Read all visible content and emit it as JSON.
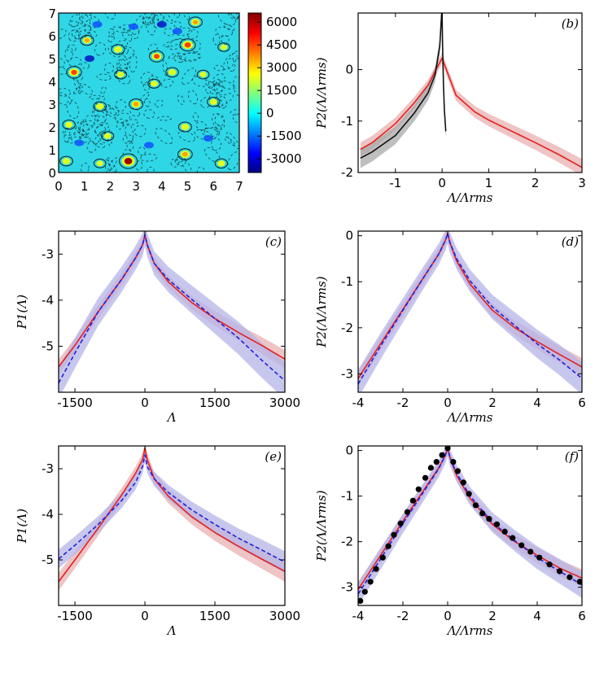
{
  "colorbar": {
    "ticks": [
      "6000",
      "4500",
      "3000",
      "1500",
      "0",
      "-1500",
      "-3000"
    ],
    "tick_values": [
      6000,
      4500,
      3000,
      1500,
      0,
      -1500,
      -3000
    ],
    "range": [
      -3900,
      6600
    ],
    "colors": [
      "#00007f",
      "#0000ff",
      "#00ffff",
      "#ffff00",
      "#ff7f00",
      "#ff0000",
      "#7f0000"
    ]
  },
  "chart_data": [
    {
      "id": "a",
      "type": "heatmap",
      "panel_label": "",
      "title": "",
      "xlabel": "",
      "ylabel": "",
      "xlim": [
        0,
        7
      ],
      "ylim": [
        0,
        7
      ],
      "x_ticks": [
        "0",
        "1",
        "2",
        "3",
        "4",
        "5",
        "6",
        "7"
      ],
      "y_ticks": [
        "0",
        "1",
        "2",
        "3",
        "4",
        "5",
        "6",
        "7"
      ],
      "background_color": "#2fd6e6",
      "hot_spots": [
        {
          "x": 0.6,
          "y": 4.4,
          "v": 3800
        },
        {
          "x": 1.1,
          "y": 5.8,
          "v": 2600
        },
        {
          "x": 2.3,
          "y": 5.4,
          "v": 2400
        },
        {
          "x": 3.8,
          "y": 5.1,
          "v": 3500
        },
        {
          "x": 4.4,
          "y": 4.4,
          "v": 2200
        },
        {
          "x": 5.0,
          "y": 5.6,
          "v": 4200
        },
        {
          "x": 5.3,
          "y": 6.6,
          "v": 2800
        },
        {
          "x": 3.0,
          "y": 3.0,
          "v": 3000
        },
        {
          "x": 1.6,
          "y": 2.9,
          "v": 2200
        },
        {
          "x": 6.0,
          "y": 3.1,
          "v": 2000
        },
        {
          "x": 4.9,
          "y": 2.0,
          "v": 2400
        },
        {
          "x": 2.7,
          "y": 0.5,
          "v": 6000
        },
        {
          "x": 0.3,
          "y": 0.5,
          "v": 2300
        },
        {
          "x": 4.9,
          "y": 0.8,
          "v": 3400
        },
        {
          "x": 6.3,
          "y": 0.4,
          "v": 2000
        },
        {
          "x": 1.9,
          "y": 1.6,
          "v": 1800
        },
        {
          "x": 3.7,
          "y": 3.9,
          "v": 1800
        },
        {
          "x": 0.4,
          "y": 2.1,
          "v": 2000
        },
        {
          "x": 2.4,
          "y": 4.3,
          "v": 1700
        },
        {
          "x": 5.6,
          "y": 4.3,
          "v": 1600
        },
        {
          "x": 6.4,
          "y": 5.5,
          "v": 1500
        },
        {
          "x": 1.6,
          "y": 0.4,
          "v": 1600
        }
      ],
      "cold_spots": [
        {
          "x": 1.2,
          "y": 5.0,
          "v": -3000
        },
        {
          "x": 2.9,
          "y": 6.4,
          "v": -2500
        },
        {
          "x": 4.0,
          "y": 6.5,
          "v": -2600
        },
        {
          "x": 1.5,
          "y": 6.5,
          "v": -2000
        },
        {
          "x": 3.5,
          "y": 1.2,
          "v": -1800
        },
        {
          "x": 5.8,
          "y": 1.5,
          "v": -1800
        },
        {
          "x": 0.8,
          "y": 1.3,
          "v": -2000
        },
        {
          "x": 4.6,
          "y": 6.2,
          "v": -2200
        }
      ]
    },
    {
      "id": "b",
      "type": "line",
      "panel_label": "(b)",
      "xlabel": "Λ/Λrms",
      "ylabel": "P2(Λ/Λrms)",
      "xlim": [
        -1.8,
        3.0
      ],
      "ylim": [
        -2.0,
        1.1
      ],
      "x_ticks": [
        -1,
        0,
        1,
        2,
        3
      ],
      "y_ticks": [
        0,
        -1,
        -2
      ],
      "series": [
        {
          "name": "red",
          "color": "#e52020",
          "band": 0.1,
          "band_color": "#e8b0b0",
          "x": [
            -1.75,
            -1.5,
            -1.0,
            -0.6,
            -0.3,
            -0.1,
            0.0,
            0.05,
            0.3,
            0.7,
            1.0,
            1.5,
            2.0,
            2.5,
            3.0
          ],
          "y": [
            -1.55,
            -1.42,
            -1.05,
            -0.65,
            -0.3,
            0.05,
            0.22,
            0.1,
            -0.5,
            -0.82,
            -0.98,
            -1.2,
            -1.42,
            -1.65,
            -1.9
          ]
        },
        {
          "name": "black",
          "color": "#111111",
          "band": 0.14,
          "band_color": "#a8a8a8",
          "x": [
            -1.75,
            -1.5,
            -1.0,
            -0.6,
            -0.3,
            -0.15,
            -0.05,
            -0.01,
            0.0,
            0.01,
            0.03,
            0.05,
            0.08
          ],
          "y": [
            -1.72,
            -1.6,
            -1.28,
            -0.85,
            -0.45,
            -0.1,
            0.45,
            1.08,
            1.1,
            0.5,
            -0.3,
            -0.8,
            -1.2
          ]
        }
      ]
    },
    {
      "id": "c",
      "type": "line",
      "panel_label": "(c)",
      "xlabel": "Λ",
      "ylabel": "P1(Λ)",
      "xlim": [
        -1850,
        3000
      ],
      "ylim": [
        -6.0,
        -2.5
      ],
      "x_ticks": [
        -1500,
        0,
        1500,
        3000
      ],
      "y_ticks": [
        -3,
        -4,
        -5
      ],
      "series": [
        {
          "name": "red",
          "color": "#e52020",
          "dash": false,
          "band": 0.12,
          "band_color": "#e8b0b0",
          "x": [
            -1850,
            -1500,
            -1000,
            -500,
            -200,
            -50,
            0,
            50,
            200,
            500,
            1000,
            1500,
            2000,
            2500,
            3000
          ],
          "y": [
            -5.45,
            -4.98,
            -4.25,
            -3.55,
            -3.08,
            -2.8,
            -2.58,
            -2.8,
            -3.2,
            -3.6,
            -4.05,
            -4.4,
            -4.7,
            -4.98,
            -5.28
          ]
        },
        {
          "name": "blue",
          "color": "#2020e0",
          "dash": true,
          "band": 0.25,
          "band_color": "#b4b4e8",
          "x": [
            -1850,
            -1500,
            -1000,
            -500,
            -200,
            -50,
            0,
            50,
            200,
            500,
            1000,
            1500,
            2000,
            2500,
            3000
          ],
          "y": [
            -5.8,
            -5.15,
            -4.25,
            -3.55,
            -3.08,
            -2.8,
            -2.58,
            -2.8,
            -3.2,
            -3.55,
            -3.98,
            -4.4,
            -4.82,
            -5.3,
            -5.75
          ]
        }
      ]
    },
    {
      "id": "d",
      "type": "line",
      "panel_label": "(d)",
      "xlabel": "Λ/Λrms",
      "ylabel": "P2(Λ/Λrms)",
      "xlim": [
        -4.0,
        6.0
      ],
      "ylim": [
        -3.4,
        0.1
      ],
      "x_ticks": [
        -4,
        -2,
        0,
        2,
        4,
        6
      ],
      "y_ticks": [
        0,
        -1,
        -2,
        -3
      ],
      "series": [
        {
          "name": "red",
          "color": "#e52020",
          "dash": false,
          "band": 0.12,
          "band_color": "#e8b0b0",
          "x": [
            -4,
            -3,
            -2,
            -1,
            -0.4,
            -0.1,
            0,
            0.1,
            0.4,
            1,
            2,
            3,
            4,
            5,
            6
          ],
          "y": [
            -3.1,
            -2.35,
            -1.6,
            -0.85,
            -0.4,
            -0.1,
            0.05,
            -0.15,
            -0.55,
            -1.05,
            -1.62,
            -2.0,
            -2.3,
            -2.58,
            -2.85
          ]
        },
        {
          "name": "blue",
          "color": "#2020e0",
          "dash": true,
          "band": 0.22,
          "band_color": "#b4b4e8",
          "x": [
            -4,
            -3,
            -2,
            -1,
            -0.4,
            -0.1,
            0,
            0.1,
            0.4,
            1,
            2,
            3,
            4,
            5,
            6
          ],
          "y": [
            -3.22,
            -2.4,
            -1.62,
            -0.85,
            -0.4,
            -0.1,
            0.05,
            -0.15,
            -0.5,
            -0.98,
            -1.55,
            -1.95,
            -2.35,
            -2.7,
            -3.1
          ]
        }
      ]
    },
    {
      "id": "e",
      "type": "line",
      "panel_label": "(e)",
      "xlabel": "Λ",
      "ylabel": "P1(Λ)",
      "xlim": [
        -1850,
        3000
      ],
      "ylim": [
        -6.0,
        -2.5
      ],
      "x_ticks": [
        -1500,
        0,
        1500,
        3000
      ],
      "y_ticks": [
        -3,
        -4,
        -5
      ],
      "series": [
        {
          "name": "red",
          "color": "#e52020",
          "dash": false,
          "band": 0.14,
          "band_color": "#e8b0b0",
          "x": [
            -1850,
            -1500,
            -1000,
            -500,
            -200,
            -50,
            0,
            50,
            200,
            500,
            1000,
            1500,
            2000,
            2500,
            3000
          ],
          "y": [
            -5.48,
            -5.0,
            -4.3,
            -3.58,
            -3.1,
            -2.8,
            -2.55,
            -2.8,
            -3.22,
            -3.6,
            -4.05,
            -4.4,
            -4.7,
            -4.98,
            -5.25
          ]
        },
        {
          "name": "blue",
          "color": "#2020e0",
          "dash": true,
          "band": 0.15,
          "band_color": "#b4b4e8",
          "x": [
            -1850,
            -1500,
            -1000,
            -500,
            -200,
            -50,
            0,
            50,
            200,
            500,
            1000,
            1500,
            2000,
            2500,
            3000
          ],
          "y": [
            -4.98,
            -4.68,
            -4.22,
            -3.7,
            -3.3,
            -2.95,
            -2.7,
            -2.95,
            -3.22,
            -3.52,
            -3.9,
            -4.22,
            -4.52,
            -4.78,
            -5.05
          ]
        }
      ]
    },
    {
      "id": "f",
      "type": "line",
      "panel_label": "(f)",
      "xlabel": "Λ/Λrms",
      "ylabel": "P2(Λ/Λrms)",
      "xlim": [
        -4.0,
        6.0
      ],
      "ylim": [
        -3.4,
        0.1
      ],
      "x_ticks": [
        -4,
        -2,
        0,
        2,
        4,
        6
      ],
      "y_ticks": [
        0,
        -1,
        -2,
        -3
      ],
      "series": [
        {
          "name": "red",
          "color": "#e52020",
          "dash": false,
          "band": 0.12,
          "band_color": "#e8b0b0",
          "x": [
            -4,
            -3,
            -2,
            -1,
            -0.4,
            -0.1,
            0,
            0.1,
            0.4,
            1,
            2,
            3,
            4,
            5,
            6
          ],
          "y": [
            -3.05,
            -2.3,
            -1.55,
            -0.82,
            -0.38,
            -0.1,
            0.05,
            -0.15,
            -0.55,
            -1.05,
            -1.62,
            -2.0,
            -2.3,
            -2.58,
            -2.8
          ]
        },
        {
          "name": "blue",
          "color": "#2020e0",
          "dash": true,
          "band": 0.18,
          "band_color": "#b4b4e8",
          "x": [
            -4,
            -3,
            -2,
            -1,
            -0.4,
            -0.1,
            0,
            0.1,
            0.4,
            1,
            2,
            3,
            4,
            5,
            6
          ],
          "y": [
            -3.15,
            -2.38,
            -1.6,
            -0.85,
            -0.4,
            -0.1,
            0.05,
            -0.15,
            -0.5,
            -1.0,
            -1.58,
            -1.98,
            -2.35,
            -2.65,
            -2.95
          ]
        },
        {
          "name": "dots",
          "type": "scatter",
          "color": "#000000",
          "x": [
            -3.9,
            -3.7,
            -3.45,
            -3.2,
            -2.9,
            -2.65,
            -2.4,
            -2.1,
            -1.8,
            -1.55,
            -1.3,
            -1.0,
            -0.75,
            -0.5,
            -0.25,
            0.0,
            0.25,
            0.45,
            0.7,
            0.95,
            1.25,
            1.55,
            1.85,
            2.2,
            2.55,
            2.9,
            3.3,
            3.7,
            4.1,
            4.55,
            5.0,
            5.45,
            5.9
          ],
          "y": [
            -3.3,
            -3.1,
            -2.88,
            -2.6,
            -2.35,
            -2.1,
            -1.85,
            -1.6,
            -1.35,
            -1.1,
            -0.85,
            -0.6,
            -0.38,
            -0.25,
            -0.1,
            0.05,
            -0.25,
            -0.45,
            -0.7,
            -0.95,
            -1.2,
            -1.38,
            -1.5,
            -1.62,
            -1.78,
            -1.92,
            -2.08,
            -2.22,
            -2.35,
            -2.5,
            -2.65,
            -2.78,
            -2.88
          ]
        }
      ]
    }
  ]
}
